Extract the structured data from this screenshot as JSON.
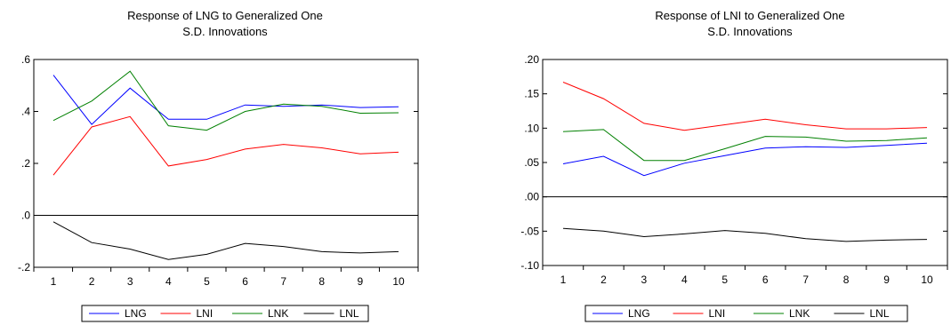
{
  "chart_data": [
    {
      "type": "line",
      "title": "Response of LNG to Generalized One",
      "subtitle": "S.D. Innovations",
      "x": [
        1,
        2,
        3,
        4,
        5,
        6,
        7,
        8,
        9,
        10
      ],
      "ylim": [
        -0.2,
        0.6
      ],
      "yticks": [
        -0.2,
        0.0,
        0.2,
        0.4,
        0.6
      ],
      "ytick_labels": [
        "-.2",
        ".0",
        ".2",
        ".4",
        ".6"
      ],
      "xtick_labels": [
        "1",
        "2",
        "3",
        "4",
        "5",
        "6",
        "7",
        "8",
        "9",
        "10"
      ],
      "zero_line": true,
      "grid": false,
      "legend_position": "bottom",
      "series": [
        {
          "name": "LNG",
          "color": "#0000ff",
          "values": [
            0.54,
            0.35,
            0.49,
            0.37,
            0.37,
            0.425,
            0.42,
            0.425,
            0.415,
            0.418
          ]
        },
        {
          "name": "LNI",
          "color": "#ff0000",
          "values": [
            0.155,
            0.34,
            0.38,
            0.19,
            0.215,
            0.255,
            0.273,
            0.26,
            0.237,
            0.243
          ]
        },
        {
          "name": "LNK",
          "color": "#008000",
          "values": [
            0.365,
            0.44,
            0.555,
            0.345,
            0.328,
            0.4,
            0.428,
            0.42,
            0.393,
            0.395
          ]
        },
        {
          "name": "LNL",
          "color": "#000000",
          "values": [
            -0.025,
            -0.105,
            -0.13,
            -0.17,
            -0.15,
            -0.108,
            -0.12,
            -0.14,
            -0.145,
            -0.14
          ]
        }
      ]
    },
    {
      "type": "line",
      "title": "Response of LNI to Generalized One",
      "subtitle": "S.D. Innovations",
      "x": [
        1,
        2,
        3,
        4,
        5,
        6,
        7,
        8,
        9,
        10
      ],
      "ylim": [
        -0.1,
        0.2
      ],
      "yticks": [
        -0.1,
        -0.05,
        0.0,
        0.05,
        0.1,
        0.15,
        0.2
      ],
      "ytick_labels": [
        "-.10",
        "-.05",
        ".00",
        ".05",
        ".10",
        ".15",
        ".20"
      ],
      "xtick_labels": [
        "1",
        "2",
        "3",
        "4",
        "5",
        "6",
        "7",
        "8",
        "9",
        "10"
      ],
      "zero_line": true,
      "grid": false,
      "legend_position": "bottom",
      "series": [
        {
          "name": "LNG",
          "color": "#0000ff",
          "values": [
            0.048,
            0.059,
            0.031,
            0.049,
            0.06,
            0.071,
            0.073,
            0.072,
            0.075,
            0.078
          ]
        },
        {
          "name": "LNI",
          "color": "#ff0000",
          "values": [
            0.167,
            0.143,
            0.107,
            0.097,
            0.105,
            0.113,
            0.105,
            0.099,
            0.099,
            0.101
          ]
        },
        {
          "name": "LNK",
          "color": "#008000",
          "values": [
            0.095,
            0.098,
            0.053,
            0.053,
            0.07,
            0.088,
            0.087,
            0.081,
            0.082,
            0.086
          ]
        },
        {
          "name": "LNL",
          "color": "#000000",
          "values": [
            -0.046,
            -0.05,
            -0.058,
            -0.054,
            -0.049,
            -0.053,
            -0.061,
            -0.065,
            -0.063,
            -0.062
          ]
        }
      ]
    }
  ]
}
